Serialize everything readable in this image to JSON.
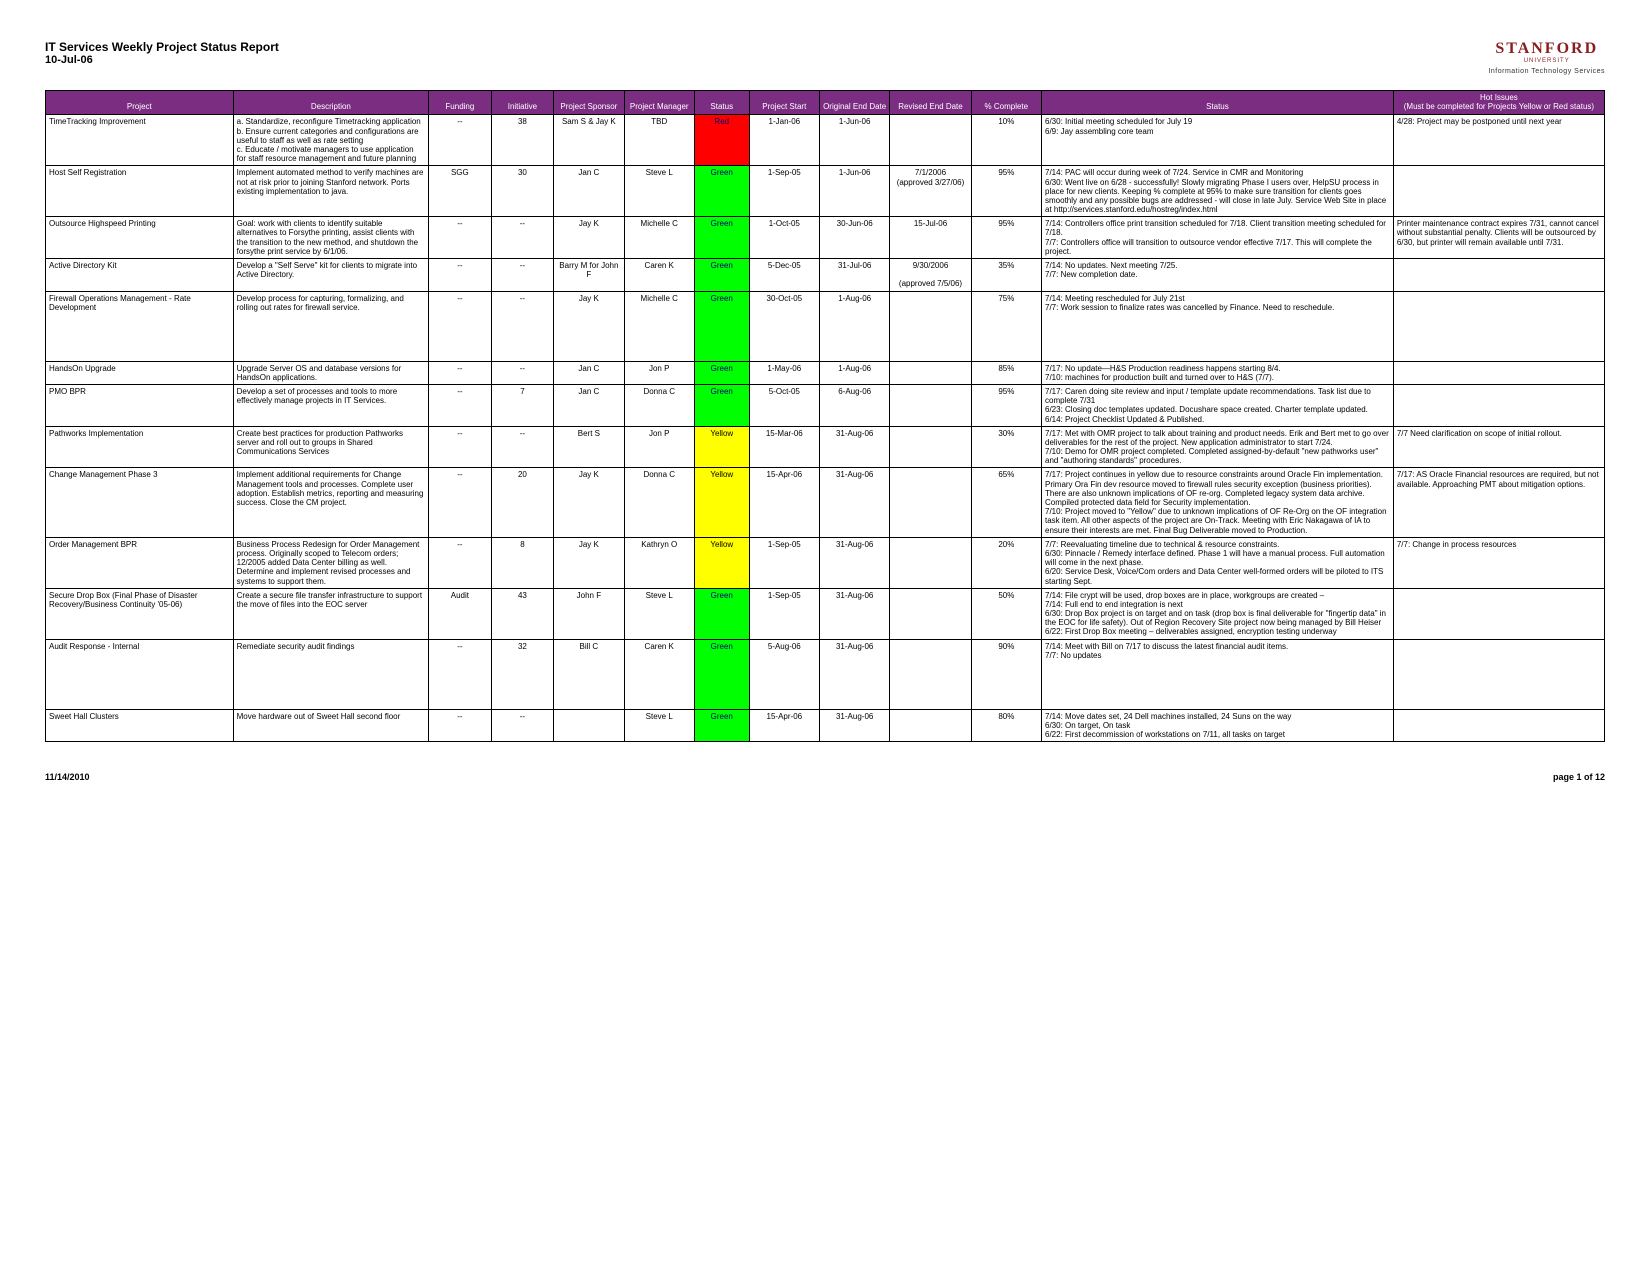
{
  "header": {
    "title": "IT Services Weekly Project Status Report",
    "date": "10-Jul-06",
    "org_name": "STANFORD",
    "org_sub": "UNIVERSITY",
    "org_dept": "Information Technology Services"
  },
  "theme": {
    "header_bg": "#7b2d82",
    "header_fg": "#ffffff",
    "status_red": "#ff0000",
    "status_green": "#00ff00",
    "status_yellow": "#ffff00"
  },
  "columns": [
    "Project",
    "Description",
    "Funding",
    "Initiative",
    "Project Sponsor",
    "Project Manager",
    "Status",
    "Project Start",
    "Original End Date",
    "Revised End Date",
    "% Complete",
    "Status",
    "Hot Issues\n(Must be completed for Projects Yellow or Red status)"
  ],
  "col_classes": [
    "col-project",
    "col-desc",
    "col-funding",
    "col-initiative",
    "col-sponsor",
    "col-manager",
    "col-statuscell",
    "col-start",
    "col-end",
    "col-revised",
    "col-pct",
    "col-status",
    "col-issues"
  ],
  "rows": [
    {
      "project": "TimeTracking Improvement",
      "description": "a. Standardize, reconfigure Timetracking application\nb. Ensure current categories and configurations are useful to staff as well as rate setting\nc. Educate / motivate managers to use application for staff resource management and future planning",
      "funding": "--",
      "initiative": "38",
      "sponsor": "Sam S & Jay K",
      "manager": "TBD",
      "status_flag": "Red",
      "start": "1-Jan-06",
      "end": "1-Jun-06",
      "revised": "",
      "pct": "10%",
      "status_text": "6/30: Initial meeting scheduled for July 19\n6/9: Jay assembling core team",
      "issues": "4/28: Project may be postponed until next year"
    },
    {
      "project": "Host Self Registration",
      "description": "Implement automated method to verify machines are not at risk prior to joining Stanford network. Ports existing implementation to java.",
      "funding": "SGG",
      "initiative": "30",
      "sponsor": "Jan C",
      "manager": "Steve L",
      "status_flag": "Green",
      "start": "1-Sep-05",
      "end": "1-Jun-06",
      "revised": "7/1/2006\n(approved 3/27/06)",
      "pct": "95%",
      "status_text": "7/14: PAC will occur during week of 7/24. Service in CMR and Monitoring\n6/30: Went live on 6/28 - successfully! Slowly migrating Phase I users over, HelpSU process in place for new clients. Keeping % complete at 95% to make sure transition for clients goes smoothly and any possible bugs are addressed - will close in late July. Service Web Site in place at http://services.stanford.edu/hostreg/index.html",
      "issues": ""
    },
    {
      "project": "Outsource Highspeed Printing",
      "description": "Goal: work with clients to identify suitable alternatives to Forsythe printing, assist clients with the transition to the new method, and shutdown the forsythe print service by 6/1/06.",
      "funding": "--",
      "initiative": "--",
      "sponsor": "Jay K",
      "manager": "Michelle C",
      "status_flag": "Green",
      "start": "1-Oct-05",
      "end": "30-Jun-06",
      "revised": "15-Jul-06",
      "pct": "95%",
      "status_text": "7/14: Controllers office print transition scheduled for 7/18. Client transition meeting scheduled for 7/18.\n7/7: Controllers office will transition to outsource vendor effective 7/17. This will complete the project.",
      "issues": "Printer maintenance contract expires 7/31, cannot cancel without substantial penalty. Clients will be outsourced by 6/30, but printer will remain available until 7/31."
    },
    {
      "project": "Active Directory Kit",
      "description": "Develop a \"Self Serve\" kit for clients to migrate into Active Directory.",
      "funding": "--",
      "initiative": "--",
      "sponsor": "Barry M for John F",
      "manager": "Caren K",
      "status_flag": "Green",
      "start": "5-Dec-05",
      "end": "31-Jul-06",
      "revised": "9/30/2006\n\n(approved 7/5/06)",
      "pct": "35%",
      "status_text": "7/14: No updates. Next meeting 7/25.\n7/7: New completion date.",
      "issues": ""
    },
    {
      "project": "Firewall Operations Management - Rate Development",
      "description": "Develop process for capturing, formalizing, and rolling out rates for firewall service.",
      "funding": "--",
      "initiative": "--",
      "sponsor": "Jay K",
      "manager": "Michelle C",
      "status_flag": "Green",
      "start": "30-Oct-05",
      "end": "1-Aug-06",
      "revised": "",
      "pct": "75%",
      "status_text": "7/14: Meeting rescheduled for July 21st\n7/7: Work session to finalize rates was cancelled by Finance. Need to reschedule.",
      "issues": "",
      "tall": true
    },
    {
      "project": "HandsOn Upgrade",
      "description": "Upgrade Server OS and database versions for HandsOn applications.",
      "funding": "--",
      "initiative": "--",
      "sponsor": "Jan C",
      "manager": "Jon P",
      "status_flag": "Green",
      "start": "1-May-06",
      "end": "1-Aug-06",
      "revised": "",
      "pct": "85%",
      "status_text": "7/17: No update—H&S Production readiness happens starting 8/4.\n7/10: machines for production built and turned over to H&S (7/7).",
      "issues": ""
    },
    {
      "project": "PMO BPR",
      "description": "Develop a set of processes and tools to more effectively manage projects in IT Services.",
      "funding": "--",
      "initiative": "7",
      "sponsor": "Jan C",
      "manager": "Donna C",
      "status_flag": "Green",
      "start": "5-Oct-05",
      "end": "6-Aug-06",
      "revised": "",
      "pct": "95%",
      "status_text": "7/17: Caren doing site review and input / template update recommendations. Task list due to complete 7/31\n6/23: Closing doc templates updated. Docushare space created. Charter template updated.\n6/14: Project Checklist Updated & Published.",
      "issues": ""
    },
    {
      "project": "Pathworks Implementation",
      "description": "Create best practices for production Pathworks server and roll out to groups in Shared Communications Services",
      "funding": "--",
      "initiative": "--",
      "sponsor": "Bert S",
      "manager": "Jon P",
      "status_flag": "Yellow",
      "start": "15-Mar-06",
      "end": "31-Aug-06",
      "revised": "",
      "pct": "30%",
      "status_text": "7/17: Met with OMR project to talk about training and product needs. Erik and Bert met to go over deliverables for the rest of the project. New application administrator to start 7/24.\n7/10: Demo for OMR project completed. Completed assigned-by-default \"new pathworks user\" and \"authoring standards\" procedures.",
      "issues": "7/7 Need clarification on scope of initial rollout."
    },
    {
      "project": "Change Management Phase 3",
      "description": "Implement additional requirements for Change Management tools and processes. Complete user adoption. Establish metrics, reporting and measuring success. Close the CM project.",
      "funding": "--",
      "initiative": "20",
      "sponsor": "Jay K",
      "manager": "Donna C",
      "status_flag": "Yellow",
      "start": "15-Apr-06",
      "end": "31-Aug-06",
      "revised": "",
      "pct": "65%",
      "status_text": "7/17: Project continues in yellow due to resource constraints around Oracle Fin implementation. Primary Ora Fin dev resource moved to firewall rules security exception (business priorities). There are also unknown implications of OF re-org. Completed legacy system data archive. Compiled protected data field for Security implementation.\n7/10: Project moved to \"Yellow\" due to unknown implications of OF Re-Org on the OF integration task item. All other aspects of the project are On-Track. Meeting with Eric Nakagawa of IA to ensure their interests are met. Final Bug Deliverable moved to Production.",
      "issues": "7/17: AS Oracle Financial resources are required, but not available. Approaching PMT about mitigation options."
    },
    {
      "project": "Order Management BPR",
      "description": "Business Process Redesign for Order Management process. Originally scoped to Telecom orders; 12/2005 added Data Center billing as well. Determine and implement revised processes and systems to support them.",
      "funding": "--",
      "initiative": "8",
      "sponsor": "Jay K",
      "manager": "Kathryn O",
      "status_flag": "Yellow",
      "start": "1-Sep-05",
      "end": "31-Aug-06",
      "revised": "",
      "pct": "20%",
      "status_text": "7/7: Reevaluating timeline due to technical & resource constraints.\n6/30: Pinnacle / Remedy interface defined. Phase 1 will have a manual process. Full automation will come in the next phase.\n6/20: Service Desk, Voice/Com orders and Data Center well-formed orders will be piloted to ITS starting Sept.",
      "issues": "7/7: Change in process resources"
    },
    {
      "project": "Secure Drop Box (Final Phase of Disaster Recovery/Business Continuity '05-06)",
      "description": "Create a secure file transfer infrastructure to support the move of files into the EOC server",
      "funding": "Audit",
      "initiative": "43",
      "sponsor": "John F",
      "manager": "Steve L",
      "status_flag": "Green",
      "start": "1-Sep-05",
      "end": "31-Aug-06",
      "revised": "",
      "pct": "50%",
      "status_text": "7/14: File crypt will be used, drop boxes are in place, workgroups are created –\n7/14: Full end to end integration is next\n6/30: Drop Box project is on target and on task (drop box is final deliverable for \"fingertip data\" in the EOC for life safety). Out of Region Recovery Site project now being managed by Bill Heiser\n6/22: First Drop Box meeting – deliverables assigned, encryption testing underway",
      "issues": ""
    },
    {
      "project": "Audit Response - Internal",
      "description": "Remediate security audit findings",
      "funding": "--",
      "initiative": "32",
      "sponsor": "Bill C",
      "manager": "Caren K",
      "status_flag": "Green",
      "start": "5-Aug-06",
      "end": "31-Aug-06",
      "revised": "",
      "pct": "90%",
      "status_text": "7/14: Meet with Bill on 7/17 to discuss the latest financial audit items.\n7/7: No updates",
      "issues": "",
      "tall": true
    },
    {
      "project": "Sweet Hall Clusters",
      "description": "Move hardware out of Sweet Hall second floor",
      "funding": "--",
      "initiative": "--",
      "sponsor": "",
      "manager": "Steve L",
      "status_flag": "Green",
      "start": "15-Apr-06",
      "end": "31-Aug-06",
      "revised": "",
      "pct": "80%",
      "status_text": "7/14: Move dates set, 24 Dell machines installed, 24 Suns on the way\n6/30: On target, On task\n6/22: First decommission of workstations on 7/11, all tasks on target",
      "issues": ""
    }
  ],
  "footer": {
    "date": "11/14/2010",
    "page": "page 1 of 12"
  }
}
